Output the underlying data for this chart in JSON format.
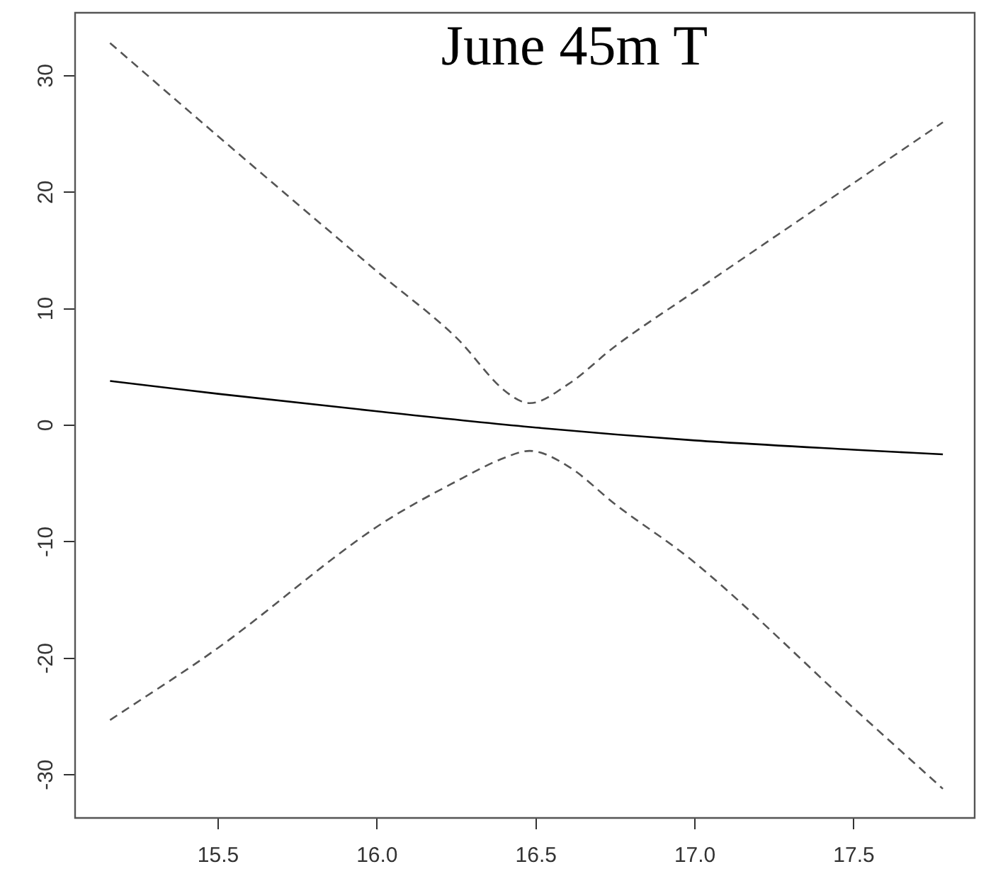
{
  "chart_data": {
    "type": "line",
    "title": "June 45m T",
    "series": [
      {
        "color": "#000000",
        "line_style": "solid",
        "x": [
          15.16,
          15.5,
          16.0,
          16.5,
          17.0,
          17.5,
          17.78
        ],
        "values": [
          3.8,
          2.7,
          1.2,
          -0.2,
          -1.3,
          -2.1,
          -2.5
        ]
      },
      {
        "color": "#555555",
        "line_style": "dashed",
        "x": [
          15.16,
          15.5,
          16.0,
          16.25,
          16.4,
          16.48,
          16.6,
          16.75,
          17.0,
          17.5,
          17.78
        ],
        "values": [
          32.8,
          24.8,
          13.2,
          7.5,
          3.0,
          1.9,
          3.5,
          6.8,
          11.5,
          20.8,
          26.0
        ]
      },
      {
        "color": "#555555",
        "line_style": "dashed",
        "x": [
          15.16,
          15.5,
          16.0,
          16.25,
          16.4,
          16.48,
          16.6,
          16.75,
          17.0,
          17.5,
          17.78
        ],
        "values": [
          -25.3,
          -19.1,
          -8.7,
          -4.8,
          -2.8,
          -2.2,
          -3.5,
          -6.8,
          -11.8,
          -24.3,
          -31.2
        ]
      }
    ],
    "xlim": [
      15.05,
      17.88
    ],
    "ylim": [
      -33.7,
      35.4
    ],
    "xticks": [
      15.5,
      {
        "value": 16,
        "label": "16.0"
      },
      16.5,
      {
        "value": 17,
        "label": "17.0"
      },
      17.5
    ],
    "yticks": [
      -30,
      -20,
      -10,
      0,
      10,
      20,
      30
    ],
    "grid": false,
    "legend": false,
    "marker": "none"
  }
}
